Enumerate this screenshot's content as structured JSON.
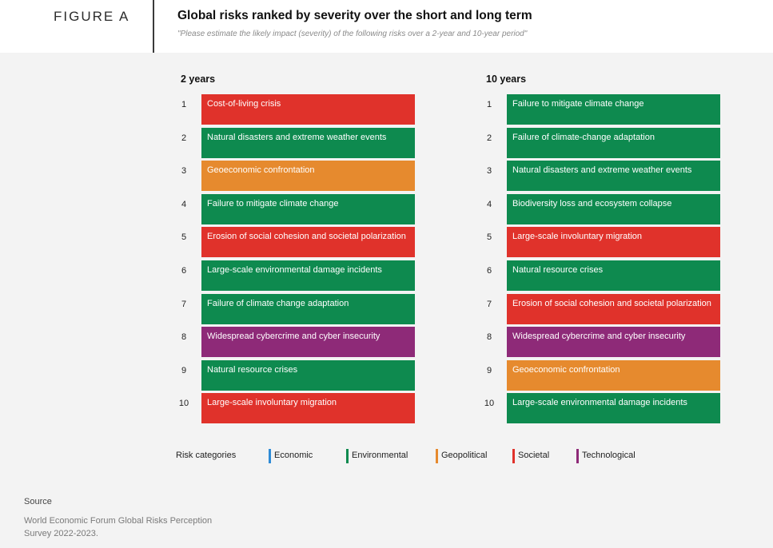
{
  "header": {
    "figure_label": "FIGURE A",
    "title": "Global risks ranked by severity over the short and long term",
    "subtitle": "\"Please estimate the likely impact (severity) of the following risks over a 2-year and 10-year period\""
  },
  "colors": {
    "Economic": "#2e8bd6",
    "Environmental": "#0e8a4f",
    "Geopolitical": "#e68a2e",
    "Societal": "#e0322b",
    "Technological": "#8e2a78"
  },
  "columns": [
    {
      "title": "2 years",
      "risks": [
        {
          "rank": "1",
          "label": "Cost-of-living crisis",
          "category": "Societal"
        },
        {
          "rank": "2",
          "label": "Natural disasters and extreme weather events",
          "category": "Environmental"
        },
        {
          "rank": "3",
          "label": "Geoeconomic confrontation",
          "category": "Geopolitical"
        },
        {
          "rank": "4",
          "label": "Failure to mitigate climate change",
          "category": "Environmental"
        },
        {
          "rank": "5",
          "label": "Erosion of social cohesion and societal polarization",
          "category": "Societal"
        },
        {
          "rank": "6",
          "label": "Large-scale environmental damage incidents",
          "category": "Environmental"
        },
        {
          "rank": "7",
          "label": "Failure of climate change adaptation",
          "category": "Environmental"
        },
        {
          "rank": "8",
          "label": "Widespread cybercrime and cyber insecurity",
          "category": "Technological"
        },
        {
          "rank": "9",
          "label": "Natural resource crises",
          "category": "Environmental"
        },
        {
          "rank": "10",
          "label": "Large-scale involuntary migration",
          "category": "Societal"
        }
      ]
    },
    {
      "title": "10 years",
      "risks": [
        {
          "rank": "1",
          "label": "Failure to mitigate climate change",
          "category": "Environmental"
        },
        {
          "rank": "2",
          "label": "Failure of climate-change adaptation",
          "category": "Environmental"
        },
        {
          "rank": "3",
          "label": "Natural disasters and extreme weather events",
          "category": "Environmental"
        },
        {
          "rank": "4",
          "label": "Biodiversity loss and ecosystem collapse",
          "category": "Environmental"
        },
        {
          "rank": "5",
          "label": "Large-scale involuntary migration",
          "category": "Societal"
        },
        {
          "rank": "6",
          "label": "Natural resource crises",
          "category": "Environmental"
        },
        {
          "rank": "7",
          "label": "Erosion of social cohesion and societal polarization",
          "category": "Societal"
        },
        {
          "rank": "8",
          "label": "Widespread cybercrime and cyber insecurity",
          "category": "Technological"
        },
        {
          "rank": "9",
          "label": "Geoeconomic confrontation",
          "category": "Geopolitical"
        },
        {
          "rank": "10",
          "label": "Large-scale environmental damage incidents",
          "category": "Environmental"
        }
      ]
    }
  ],
  "legend": {
    "title": "Risk categories",
    "items": [
      {
        "label": "Economic",
        "category": "Economic"
      },
      {
        "label": "Environmental",
        "category": "Environmental"
      },
      {
        "label": "Geopolitical",
        "category": "Geopolitical"
      },
      {
        "label": "Societal",
        "category": "Societal"
      },
      {
        "label": "Technological",
        "category": "Technological"
      }
    ]
  },
  "source": {
    "heading": "Source",
    "text": "World Economic Forum Global Risks Perception Survey 2022-2023."
  }
}
